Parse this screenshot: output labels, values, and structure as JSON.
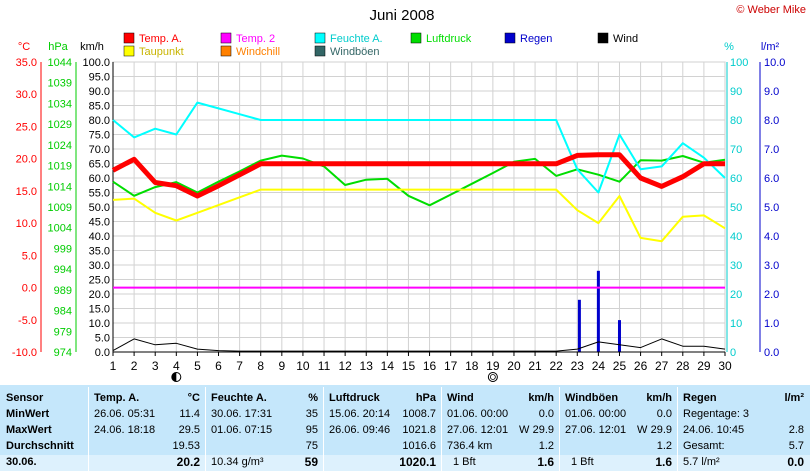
{
  "header": {
    "title": "Juni 2008",
    "copyright": "© Weber Mike"
  },
  "legend": [
    {
      "label": "Temp. A.",
      "color": "#ff0000"
    },
    {
      "label": "Temp. 2",
      "color": "#ff00ff"
    },
    {
      "label": "Feuchte A.",
      "color": "#00ffff"
    },
    {
      "label": "Luftdruck",
      "color": "#00dd00"
    },
    {
      "label": "Regen",
      "color": "#0000cc"
    },
    {
      "label": "Wind",
      "color": "#000000"
    },
    {
      "label": "Taupunkt",
      "color": "#ffff00"
    },
    {
      "label": "Windchill",
      "color": "#ff8000"
    },
    {
      "label": "Windböen",
      "color": "#336666"
    }
  ],
  "chart_data": {
    "type": "line",
    "axes": {
      "temp": {
        "unit": "°C",
        "color": "#ff0000",
        "ticks": [
          "35.0",
          "30.0",
          "25.0",
          "20.0",
          "15.0",
          "10.0",
          "5.0",
          "0.0",
          "-5.0",
          "-10.0"
        ]
      },
      "pressure": {
        "unit": "hPa",
        "color": "#00cc00",
        "ticks": [
          "1044",
          "1039",
          "1034",
          "1029",
          "1024",
          "1019",
          "1014",
          "1009",
          "1004",
          "999",
          "994",
          "989",
          "984",
          "979",
          "974"
        ]
      },
      "wind": {
        "unit": "km/h",
        "color": "#000000",
        "ticks": [
          "100.0",
          "95.0",
          "90.0",
          "85.0",
          "80.0",
          "75.0",
          "70.0",
          "65.0",
          "60.0",
          "55.0",
          "50.0",
          "45.0",
          "40.0",
          "35.0",
          "30.0",
          "25.0",
          "20.0",
          "15.0",
          "10.0",
          "5.0",
          "0.0"
        ]
      },
      "humidity": {
        "unit": "%",
        "color": "#00cccc",
        "ticks": [
          "100",
          "90",
          "80",
          "70",
          "60",
          "50",
          "40",
          "30",
          "20",
          "10",
          "0"
        ]
      },
      "rain": {
        "unit": "l/m²",
        "color": "#0000cc",
        "ticks": [
          "10.0",
          "9.0",
          "8.0",
          "7.0",
          "6.0",
          "5.0",
          "4.0",
          "3.0",
          "2.0",
          "1.0",
          "0.0"
        ]
      }
    },
    "x": [
      "1",
      "2",
      "3",
      "4",
      "5",
      "6",
      "7",
      "8",
      "9",
      "10",
      "11",
      "12",
      "13",
      "14",
      "15",
      "16",
      "17",
      "18",
      "19",
      "20",
      "21",
      "22",
      "23",
      "24",
      "25",
      "26",
      "27",
      "28",
      "29",
      "30"
    ],
    "xlim": [
      1,
      30
    ],
    "temp_range": [
      -10,
      35
    ],
    "grid": true,
    "moon_days": [
      {
        "day": 4,
        "phase": "half"
      },
      {
        "day": 19,
        "phase": "full"
      }
    ],
    "series": [
      {
        "name": "Temp. A.",
        "color": "#ff0000",
        "axis": "temp",
        "width": 5,
        "points": [
          [
            1,
            18.2
          ],
          [
            2,
            19.9
          ],
          [
            3,
            16.3
          ],
          [
            4,
            15.8
          ],
          [
            5,
            14.2
          ],
          [
            6,
            15.8
          ],
          [
            7,
            17.5
          ],
          [
            8,
            19.2
          ],
          [
            9,
            19.2
          ],
          [
            10,
            19.2
          ],
          [
            11,
            19.2
          ],
          [
            12,
            19.2
          ],
          [
            13,
            19.2
          ],
          [
            14,
            19.2
          ],
          [
            15,
            19.2
          ],
          [
            16,
            19.2
          ],
          [
            17,
            19.2
          ],
          [
            18,
            19.2
          ],
          [
            19,
            19.2
          ],
          [
            20,
            19.2
          ],
          [
            21,
            19.2
          ],
          [
            22,
            19.2
          ],
          [
            23,
            20.5
          ],
          [
            24,
            20.6
          ],
          [
            25,
            20.6
          ],
          [
            26,
            17.0
          ],
          [
            27,
            15.7
          ],
          [
            28,
            17.2
          ],
          [
            29,
            19.2
          ],
          [
            30,
            19.2
          ]
        ]
      },
      {
        "name": "Temp. 2",
        "color": "#ff00ff",
        "axis": "temp",
        "width": 2,
        "points": [
          [
            1,
            0
          ],
          [
            30,
            0
          ]
        ]
      },
      {
        "name": "Taupunkt",
        "color": "#ffff00",
        "axis": "temp",
        "width": 2,
        "points": [
          [
            1,
            13.6
          ],
          [
            2,
            13.8
          ],
          [
            3,
            11.6
          ],
          [
            4,
            10.4
          ],
          [
            5,
            11.6
          ],
          [
            6,
            12.8
          ],
          [
            7,
            14.0
          ],
          [
            8,
            15.2
          ],
          [
            9,
            15.2
          ],
          [
            10,
            15.2
          ],
          [
            11,
            15.2
          ],
          [
            12,
            15.2
          ],
          [
            13,
            15.2
          ],
          [
            14,
            15.2
          ],
          [
            15,
            15.2
          ],
          [
            16,
            15.2
          ],
          [
            17,
            15.2
          ],
          [
            18,
            15.2
          ],
          [
            19,
            15.2
          ],
          [
            20,
            15.2
          ],
          [
            21,
            15.2
          ],
          [
            22,
            15.2
          ],
          [
            23,
            12.0
          ],
          [
            24,
            10.0
          ],
          [
            25,
            14.2
          ],
          [
            26,
            7.7
          ],
          [
            27,
            7.2
          ],
          [
            28,
            11.0
          ],
          [
            29,
            11.2
          ],
          [
            30,
            9.2
          ]
        ]
      },
      {
        "name": "Feuchte A.",
        "color": "#00ffff",
        "axis": "humidity",
        "width": 2,
        "points": [
          [
            1,
            80
          ],
          [
            2,
            74
          ],
          [
            3,
            77
          ],
          [
            4,
            75
          ],
          [
            5,
            86
          ],
          [
            6,
            84
          ],
          [
            7,
            82
          ],
          [
            8,
            80
          ],
          [
            9,
            80
          ],
          [
            10,
            80
          ],
          [
            11,
            80
          ],
          [
            12,
            80
          ],
          [
            13,
            80
          ],
          [
            14,
            80
          ],
          [
            15,
            80
          ],
          [
            16,
            80
          ],
          [
            17,
            80
          ],
          [
            18,
            80
          ],
          [
            19,
            80
          ],
          [
            20,
            80
          ],
          [
            21,
            80
          ],
          [
            22,
            80
          ],
          [
            23,
            63
          ],
          [
            24,
            55
          ],
          [
            25,
            75
          ],
          [
            26,
            63
          ],
          [
            27,
            64
          ],
          [
            28,
            72
          ],
          [
            29,
            67
          ],
          [
            30,
            60
          ]
        ]
      },
      {
        "name": "Luftdruck",
        "color": "#00dd00",
        "axis": "pressure",
        "width": 2,
        "points": [
          [
            1,
            1015.1
          ],
          [
            2,
            1011.7
          ],
          [
            3,
            1013.8
          ],
          [
            4,
            1015.0
          ],
          [
            5,
            1012.5
          ],
          [
            6,
            1015.1
          ],
          [
            7,
            1017.6
          ],
          [
            8,
            1020.2
          ],
          [
            9,
            1021.4
          ],
          [
            10,
            1020.7
          ],
          [
            11,
            1018.8
          ],
          [
            12,
            1014.3
          ],
          [
            13,
            1015.6
          ],
          [
            14,
            1015.8
          ],
          [
            15,
            1011.7
          ],
          [
            16,
            1009.4
          ],
          [
            17,
            1012.0
          ],
          [
            18,
            1014.6
          ],
          [
            19,
            1017.2
          ],
          [
            20,
            1019.9
          ],
          [
            21,
            1020.6
          ],
          [
            22,
            1016.5
          ],
          [
            23,
            1018.1
          ],
          [
            24,
            1016.8
          ],
          [
            25,
            1015.1
          ],
          [
            26,
            1020.3
          ],
          [
            27,
            1020.2
          ],
          [
            28,
            1021.3
          ],
          [
            29,
            1019.7
          ],
          [
            30,
            1020.4
          ]
        ]
      },
      {
        "name": "Wind",
        "color": "#000000",
        "axis": "wind",
        "width": 1,
        "points": [
          [
            1,
            0.5
          ],
          [
            2,
            4.5
          ],
          [
            3,
            2.5
          ],
          [
            4,
            3.0
          ],
          [
            5,
            1.0
          ],
          [
            6,
            0.5
          ],
          [
            7,
            0.3
          ],
          [
            8,
            0.3
          ],
          [
            9,
            0.3
          ],
          [
            10,
            0.3
          ],
          [
            11,
            0.3
          ],
          [
            12,
            0.3
          ],
          [
            13,
            0.3
          ],
          [
            14,
            0.3
          ],
          [
            15,
            0.3
          ],
          [
            16,
            0.3
          ],
          [
            17,
            0.3
          ],
          [
            18,
            0.3
          ],
          [
            19,
            0.3
          ],
          [
            20,
            0.3
          ],
          [
            21,
            0.3
          ],
          [
            22,
            0.3
          ],
          [
            23,
            1.0
          ],
          [
            24,
            3.5
          ],
          [
            25,
            2.5
          ],
          [
            26,
            1.5
          ],
          [
            27,
            4.5
          ],
          [
            28,
            2.0
          ],
          [
            29,
            2.0
          ],
          [
            30,
            1.0
          ]
        ]
      }
    ],
    "rain_bars": [
      [
        23.1,
        1.8
      ],
      [
        24.0,
        2.8
      ],
      [
        25.0,
        1.1
      ]
    ]
  },
  "table": {
    "headers": {
      "sensor": "Sensor",
      "temp": "Temp. A.",
      "temp_unit": "°C",
      "hum": "Feuchte A.",
      "hum_unit": "%",
      "press": "Luftdruck",
      "press_unit": "hPa",
      "wind": "Wind",
      "wind_unit": "km/h",
      "gust": "Windböen",
      "gust_unit": "km/h",
      "rain": "Regen",
      "rain_unit": "l/m²"
    },
    "row_labels": {
      "min": "MinWert",
      "max": "MaxWert",
      "avg": "Durchschnitt",
      "last": "30.06."
    },
    "temp": {
      "min_time": "26.06.  05:31",
      "min_val": "11.4",
      "max_time": "24.06.  18:18",
      "max_val": "29.5",
      "avg": "19.53",
      "last": "20.2"
    },
    "hum": {
      "min_time": "30.06.  17:31",
      "min_val": "35",
      "max_time": "01.06.  07:15",
      "max_val": "95",
      "avg": "75",
      "last_extra": "10.34 g/m³",
      "last": "59"
    },
    "press": {
      "min_time": "15.06.  20:14",
      "min_val": "1008.7",
      "max_time": "26.06.  09:46",
      "max_val": "1021.8",
      "avg": "1016.6",
      "last": "1020.1"
    },
    "wind": {
      "min_time": "01.06.  00:00",
      "min_val": "0.0",
      "max_time": "27.06.  12:01",
      "max_dir": "W",
      "max_val": "29.9",
      "avg_extra": "736.4 km",
      "avg": "1.2",
      "last_extra": "1 Bft",
      "last": "1.6"
    },
    "gust": {
      "min_time": "01.06.  00:00",
      "min_val": "0.0",
      "max_time": "27.06.  12:01",
      "max_dir": "W",
      "max_val": "29.9",
      "avg": "1.2",
      "last_extra": "1 Bft",
      "last": "1.6"
    },
    "rain": {
      "min_label": "Regentage: 3",
      "max_time": "24.06.  10:45",
      "max_val": "2.8",
      "avg_label": "Gesamt:",
      "avg": "5.7",
      "last_extra": "5.7 l/m²",
      "last": "0.0"
    }
  }
}
